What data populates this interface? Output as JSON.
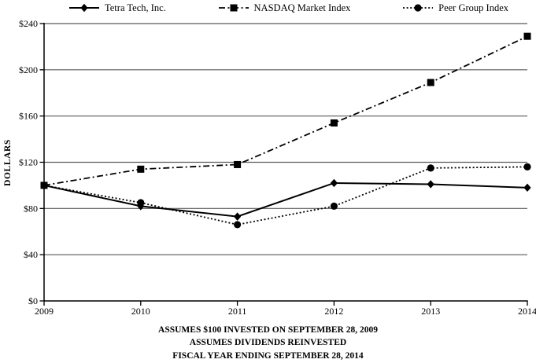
{
  "chart_data": {
    "type": "line",
    "title": "",
    "ylabel": "DOLLARS",
    "xlabel": "",
    "categories": [
      "2009",
      "2010",
      "2011",
      "2012",
      "2013",
      "2014"
    ],
    "y_ticks": [
      "$0",
      "$40",
      "$80",
      "$120",
      "$160",
      "$200",
      "$240"
    ],
    "ylim": [
      0,
      240
    ],
    "grid": "horizontal",
    "legend_position": "top",
    "series": [
      {
        "name": "Tetra Tech, Inc.",
        "marker": "diamond",
        "line_style": "solid",
        "color": "#000000",
        "values": [
          100,
          82,
          73,
          102,
          101,
          98
        ]
      },
      {
        "name": "NASDAQ Market Index",
        "marker": "square",
        "line_style": "dash-dot",
        "color": "#000000",
        "values": [
          100,
          114,
          118,
          154,
          189,
          229
        ]
      },
      {
        "name": "Peer Group Index",
        "marker": "circle",
        "line_style": "dotted",
        "color": "#000000",
        "values": [
          100,
          85,
          66,
          82,
          115,
          116
        ]
      }
    ],
    "footnotes": [
      "ASSUMES $100 INVESTED ON SEPTEMBER 28, 2009",
      "ASSUMES DIVIDENDS REINVESTED",
      "FISCAL YEAR ENDING SEPTEMBER 28, 2014"
    ]
  },
  "colors": {
    "background": "#ffffff",
    "axis": "#000000",
    "grid": "#595959",
    "text": "#000000",
    "series": "#000000"
  }
}
